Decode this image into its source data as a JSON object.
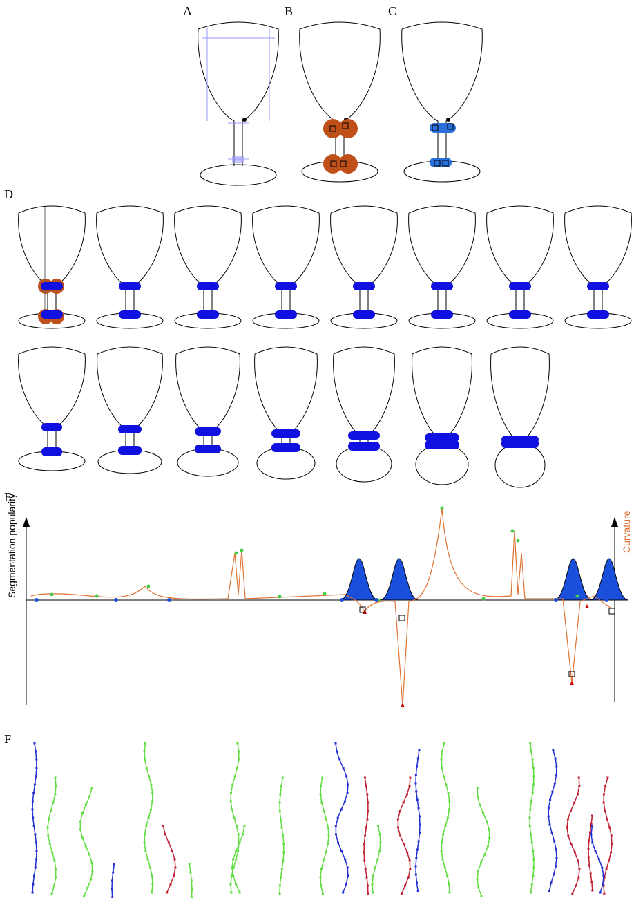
{
  "panels": {
    "A": "A",
    "B": "B",
    "C": "C",
    "D": "D",
    "E": "E",
    "F": "F"
  },
  "plot": {
    "y_label": "Segmentation popularity",
    "y2_label": "Curvature"
  }
}
